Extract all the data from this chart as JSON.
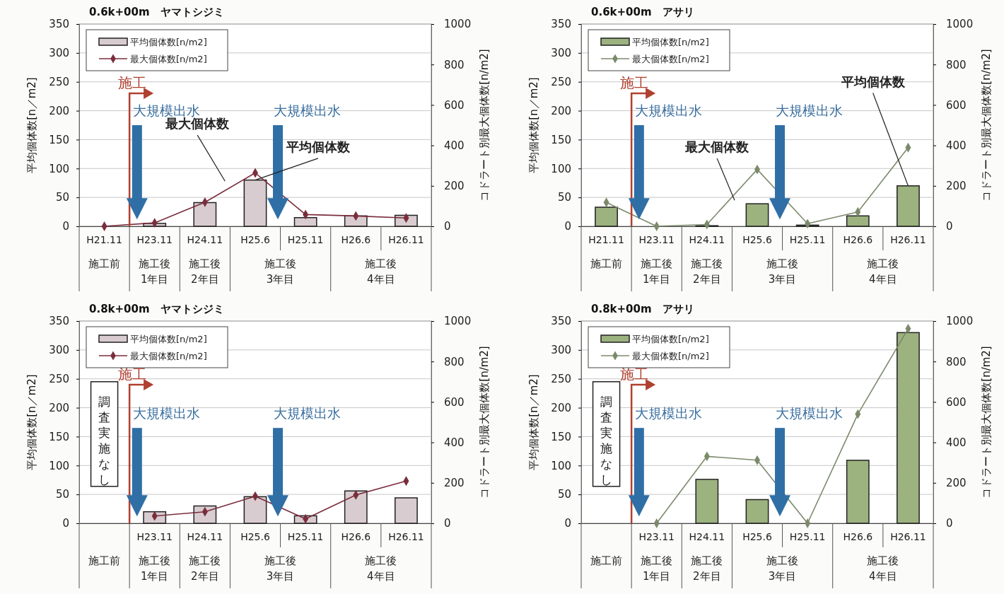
{
  "chart_data": [
    {
      "type": "bar",
      "title": "0.6k+00m　ヤマトシジミ",
      "ylabel": "平均個体数[n／m2]",
      "y2label": "コドラート別最大個体数[n/m2]",
      "categories": [
        "H21.11",
        "H23.11",
        "H24.11",
        "H25.6",
        "H25.11",
        "H26.6",
        "H26.11"
      ],
      "ylim": [
        0,
        350
      ],
      "yticks": [
        0,
        50,
        100,
        150,
        200,
        250,
        300,
        350
      ],
      "y2lim": [
        0,
        1000
      ],
      "y2ticks": [
        0,
        200,
        400,
        600,
        800,
        1000
      ],
      "grid": "y",
      "legend": "top left",
      "marker": "diamond",
      "series": [
        {
          "name": "平均個体数[n/m2]",
          "color": "#d9ccd0",
          "values": [
            0,
            5,
            41,
            80,
            15,
            18,
            19
          ]
        },
        {
          "name": "最大個体数[n/m2]",
          "type": "line",
          "axis": "y2",
          "color": "#7a2e3c",
          "values": [
            0,
            17,
            119,
            264,
            58,
            51,
            41
          ]
        }
      ],
      "annotations": [
        "施工前",
        "施工後\n1年目",
        "施工後\n2年目",
        "施工後\n3年目",
        "施工後\n4年目",
        {
          "text": "施工",
          "y": 0
        },
        "大規模出水",
        "大規模出水",
        "最大個体数",
        {
          "text": "平均個体数",
          "x": "H25.6",
          "y": 80
        }
      ]
    },
    {
      "type": "bar",
      "title": "0.6k+00m　アサリ",
      "ylabel": "平均個体数[n／m2]",
      "y2label": "コドラート別最大個体数[n/m2]",
      "categories": [
        "H21.11",
        "H23.11",
        "H24.11",
        "H25.6",
        "H25.11",
        "H26.6",
        "H26.11"
      ],
      "ylim": [
        0,
        350
      ],
      "yticks": [
        0,
        50,
        100,
        150,
        200,
        250,
        300,
        350
      ],
      "y2lim": [
        0,
        1000
      ],
      "y2ticks": [
        0,
        200,
        400,
        600,
        800,
        1000
      ],
      "grid": "y",
      "legend": "top left",
      "marker": "diamond",
      "series": [
        {
          "name": "平均個体数[n/m2]",
          "color": "#9cb27f",
          "values": [
            33,
            0,
            1,
            39,
            2,
            18,
            70
          ]
        },
        {
          "name": "最大個体数[n/m2]",
          "type": "line",
          "axis": "y2",
          "color": "#7c8a6c",
          "values": [
            118,
            0,
            9,
            281,
            13,
            71,
            389
          ]
        }
      ],
      "annotations": [
        "施工前",
        "施工後\n1年目",
        "施工後\n2年目",
        "施工後\n3年目",
        "施工後\n4年目",
        "施工",
        "大規模出水",
        "大規模出水",
        "最大個体数",
        {
          "text": "平均個体数",
          "x": "H26.11",
          "y": 70
        }
      ]
    },
    {
      "type": "bar",
      "title": "0.8k+00m　ヤマトシジミ",
      "ylabel": "平均個体数[n／m2]",
      "y2label": "コドラート別最大個体数[n/m2]",
      "categories": [
        null,
        "H23.11",
        "H24.11",
        "H25.6",
        "H25.11",
        "H26.6",
        "H26.11"
      ],
      "ylim": [
        0,
        350
      ],
      "yticks": [
        0,
        50,
        100,
        150,
        200,
        250,
        300,
        350
      ],
      "y2lim": [
        0,
        1000
      ],
      "y2ticks": [
        0,
        200,
        400,
        600,
        800,
        1000
      ],
      "grid": "y",
      "legend": "top left",
      "marker": "diamond",
      "series": [
        {
          "name": "平均個体数[n/m2]",
          "color": "#d9ccd0",
          "values": [
            null,
            20,
            30,
            46,
            13,
            56,
            44
          ]
        },
        {
          "name": "最大個体数[n/m2]",
          "type": "line",
          "axis": "y2",
          "color": "#7a2e3c",
          "values": [
            null,
            36,
            57,
            134,
            22,
            140,
            209
          ]
        }
      ],
      "annotations": [
        "施工前",
        "施工後\n1年目",
        "施工後\n2年目",
        "施工後\n3年目",
        "施工後\n4年目",
        "施工",
        "大規模出水",
        "大規模出水",
        "調査実施なし"
      ]
    },
    {
      "type": "bar",
      "title": "0.8k+00m　アサリ",
      "ylabel": "平均個体数[n／m2]",
      "y2label": "コドラート別最大個体数[n/m2]",
      "categories": [
        null,
        "H23.11",
        "H24.11",
        "H25.6",
        "H25.11",
        "H26.6",
        "H26.11"
      ],
      "ylim": [
        0,
        350
      ],
      "yticks": [
        0,
        50,
        100,
        150,
        200,
        250,
        300,
        350
      ],
      "y2lim": [
        0,
        1000
      ],
      "y2ticks": [
        0,
        200,
        400,
        600,
        800,
        1000
      ],
      "grid": "y",
      "legend": "top left",
      "marker": "diamond",
      "series": [
        {
          "name": "平均個体数[n/m2]",
          "color": "#9cb27f",
          "values": [
            null,
            0,
            76,
            41,
            0,
            109,
            330
          ]
        },
        {
          "name": "最大個体数[n/m2]",
          "type": "line",
          "axis": "y2",
          "color": "#7c8a6c",
          "values": [
            null,
            0,
            331,
            312,
            0,
            540,
            962
          ]
        }
      ],
      "annotations": [
        "施工前",
        "施工後\n1年目",
        "施工後\n2年目",
        "施工後\n3年目",
        "施工後\n4年目",
        "施工",
        "大規模出水",
        "大規模出水",
        "調査実施なし"
      ]
    }
  ]
}
